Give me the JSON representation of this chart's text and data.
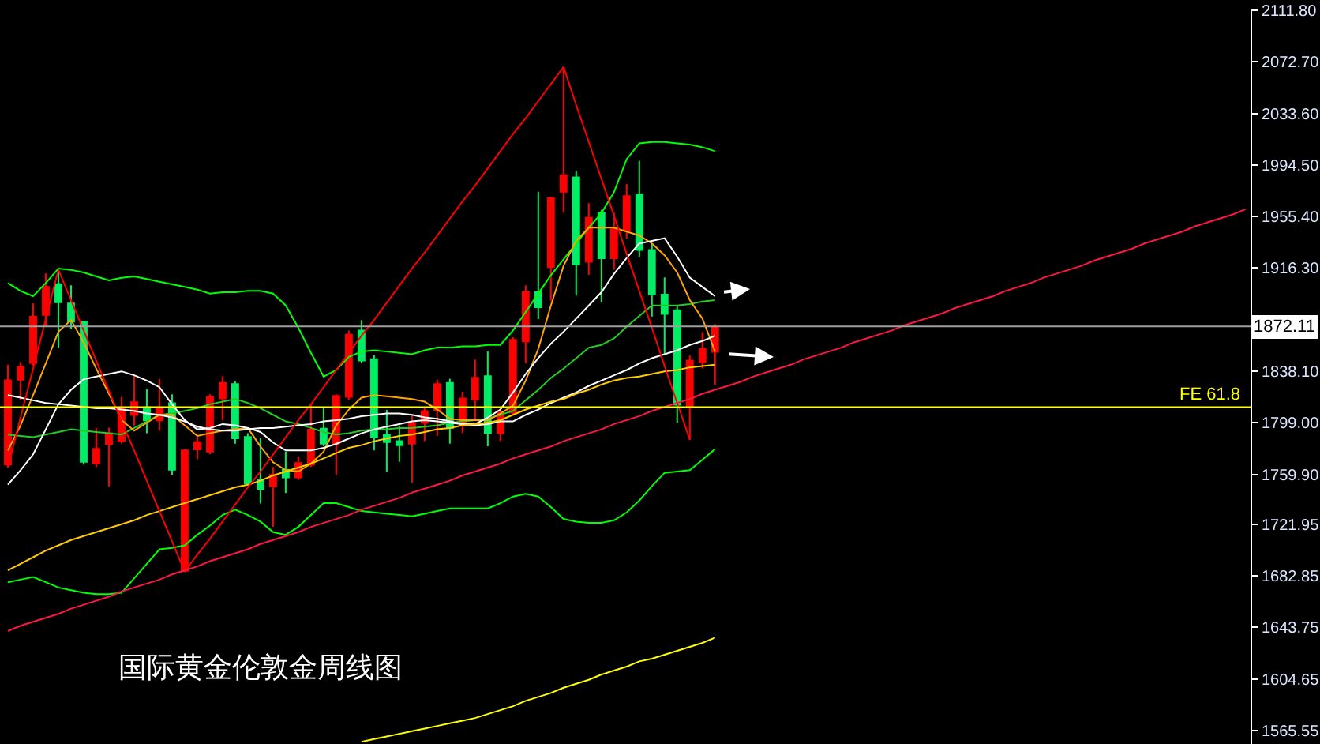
{
  "chart_data": {
    "type": "candlestick",
    "title": "国际黄金伦敦金周线图",
    "categories": [
      null,
      null,
      null,
      null,
      null,
      null,
      null,
      null,
      null,
      null,
      null,
      null,
      null,
      null,
      null,
      null,
      null,
      null,
      null,
      null,
      null,
      null,
      null,
      null,
      null,
      null,
      null,
      null,
      null,
      null,
      null,
      null,
      null,
      null,
      null,
      null,
      null,
      null,
      null,
      null,
      null,
      null,
      null,
      null,
      null,
      null,
      null,
      null,
      null,
      null,
      null,
      null,
      null,
      null,
      null,
      null,
      null,
      null,
      null,
      null,
      null,
      null,
      null,
      null,
      null,
      null,
      null,
      null,
      null,
      null,
      null,
      null,
      null,
      null,
      null,
      null,
      null,
      null,
      null,
      null,
      null,
      null,
      null,
      null,
      null,
      null,
      null,
      null,
      null,
      null,
      null,
      null,
      null,
      null,
      null,
      null,
      null,
      null,
      null
    ],
    "ohlc": [
      [
        1767.3,
        1843.0,
        1765.4,
        1831.2
      ],
      [
        1831.6,
        1845.0,
        1816.6,
        1841.4
      ],
      [
        1844.2,
        1889.5,
        1842.2,
        1879.6
      ],
      [
        1880.8,
        1912.3,
        1871.8,
        1902.1
      ],
      [
        1904.1,
        1915.1,
        1856.0,
        1890.3
      ],
      [
        1889.5,
        1903.3,
        1869.8,
        1875.7
      ],
      [
        1875.7,
        1875.7,
        1767.3,
        1769.3
      ],
      [
        1768.1,
        1794.9,
        1765.4,
        1779.2
      ],
      [
        1782.7,
        1795.3,
        1750.8,
        1791.0
      ],
      [
        1785.1,
        1818.6,
        1783.1,
        1810.7
      ],
      [
        1804.8,
        1834.3,
        1796.9,
        1814.6
      ],
      [
        1810.7,
        1824.5,
        1791.0,
        1800.8
      ],
      [
        1800.8,
        1832.4,
        1792.9,
        1810.7
      ],
      [
        1813.8,
        1820.5,
        1759.5,
        1763.4
      ],
      [
        1686.6,
        1779.0,
        1685.8,
        1778.0
      ],
      [
        1778.8,
        1789.0,
        1771.3,
        1784.3
      ],
      [
        1777.2,
        1820.5,
        1775.2,
        1818.6
      ],
      [
        1817.4,
        1834.3,
        1800.8,
        1829.2
      ],
      [
        1828.4,
        1830.4,
        1783.1,
        1787.1
      ],
      [
        1788.2,
        1791.0,
        1752.0,
        1752.8
      ],
      [
        1755.5,
        1787.1,
        1737.8,
        1748.8
      ],
      [
        1750.8,
        1765.4,
        1720.1,
        1759.5
      ],
      [
        1763.4,
        1777.2,
        1745.7,
        1757.5
      ],
      [
        1757.5,
        1773.3,
        1755.5,
        1768.5
      ],
      [
        1767.3,
        1812.7,
        1765.4,
        1793.7
      ],
      [
        1794.5,
        1810.7,
        1781.1,
        1783.1
      ],
      [
        1783.1,
        1820.5,
        1759.5,
        1819.4
      ],
      [
        1818.6,
        1869.0,
        1816.6,
        1865.8
      ],
      [
        1869.0,
        1876.9,
        1844.2,
        1846.2
      ],
      [
        1847.3,
        1850.1,
        1778.0,
        1788.2
      ],
      [
        1789.8,
        1808.7,
        1761.4,
        1784.3
      ],
      [
        1785.1,
        1796.9,
        1769.3,
        1781.9
      ],
      [
        1783.1,
        1804.8,
        1753.6,
        1798.9
      ],
      [
        1798.9,
        1810.7,
        1785.1,
        1807.9
      ],
      [
        1808.7,
        1831.6,
        1789.0,
        1828.4
      ],
      [
        1829.2,
        1832.4,
        1783.1,
        1794.9
      ],
      [
        1796.9,
        1822.5,
        1791.0,
        1817.4
      ],
      [
        1816.6,
        1846.9,
        1800.8,
        1833.1
      ],
      [
        1834.3,
        1853.2,
        1781.1,
        1791.0
      ],
      [
        1791.0,
        1810.7,
        1785.1,
        1806.8
      ],
      [
        1806.8,
        1863.9,
        1804.8,
        1861.9
      ],
      [
        1860.7,
        1903.3,
        1844.2,
        1898.2
      ],
      [
        1898.2,
        1974.2,
        1877.7,
        1886.7
      ],
      [
        1917.1,
        1970.3,
        1891.5,
        1969.5
      ],
      [
        1974.2,
        2068.7,
        1958.4,
        1986.8
      ],
      [
        1985.2,
        1989.9,
        1895.4,
        1919.0
      ],
      [
        1921.0,
        1965.5,
        1911.2,
        1954.5
      ],
      [
        1958.4,
        1960.4,
        1890.7,
        1923.8
      ],
      [
        1923.8,
        1958.4,
        1915.1,
        1945.8
      ],
      [
        1944.6,
        1980.1,
        1938.7,
        1971.0
      ],
      [
        1972.2,
        1997.8,
        1925.0,
        1930.1
      ],
      [
        1930.1,
        1934.8,
        1879.6,
        1896.2
      ],
      [
        1896.2,
        1909.2,
        1850.1,
        1881.6
      ],
      [
        1884.4,
        1887.5,
        1798.9,
        1812.7
      ],
      [
        1810.7,
        1850.1,
        1785.9,
        1846.2
      ],
      [
        1845.0,
        1867.8,
        1840.2,
        1854.8
      ],
      [
        1852.8,
        1873.7,
        1827.6,
        1871.8
      ],
      null,
      null,
      null,
      null,
      null,
      null,
      null,
      null,
      null,
      null,
      null,
      null,
      null,
      null,
      null,
      null,
      null,
      null,
      null,
      null,
      null,
      null,
      null,
      null,
      null,
      null,
      null,
      null,
      null,
      null,
      null,
      null,
      null,
      null,
      null,
      null,
      null,
      null,
      null,
      null,
      null,
      null
    ],
    "colors": [
      "#ff0000",
      "#ff0000",
      "#ff0000",
      "#ff0000",
      "#00ee66",
      "#00ee66",
      "#00ee66",
      "#ff0000",
      "#ff0000",
      "#ff0000",
      "#ff0000",
      "#00ee66",
      "#ff0000",
      "#00ee66",
      "#ff0000",
      "#ff0000",
      "#ff0000",
      "#ff0000",
      "#00ee66",
      "#00ee66",
      "#00ee66",
      "#ff0000",
      "#00ee66",
      "#ff0000",
      "#ff0000",
      "#00ee66",
      "#ff0000",
      "#ff0000",
      "#00ee66",
      "#00ee66",
      "#00ee66",
      "#00ee66",
      "#ff0000",
      "#ff0000",
      "#ff0000",
      "#00ee66",
      "#ff0000",
      "#ff0000",
      "#00ee66",
      "#ff0000",
      "#ff0000",
      "#ff0000",
      "#00ee66",
      "#ff0000",
      "#ff0000",
      "#00ee66",
      "#ff0000",
      "#00ee66",
      "#ff0000",
      "#ff0000",
      "#00ee66",
      "#00ee66",
      "#00ee66",
      "#00ee66",
      "#ff0000",
      "#ff0000",
      "#ff0000",
      null,
      null,
      null,
      null,
      null,
      null,
      null,
      null,
      null,
      null,
      null,
      null,
      null,
      null,
      null,
      null,
      null,
      null,
      null,
      null,
      null,
      null,
      null,
      null,
      null,
      null,
      null,
      null,
      null,
      null,
      null,
      null,
      null,
      null,
      null,
      null,
      null,
      null,
      null,
      null,
      null,
      null
    ],
    "series": [
      {
        "type": "line",
        "color": "#00ff00",
        "values": [
          1905,
          1899,
          1895,
          1905,
          1916,
          1915,
          1913,
          1910,
          1907,
          1909,
          1910,
          1908,
          1906,
          1904,
          1902,
          1900,
          1897,
          1898,
          1898,
          1899,
          1899,
          1897,
          1888,
          1871,
          1852,
          1834,
          1839,
          1849,
          1853,
          1854,
          1853,
          1852,
          1851,
          1854,
          1856,
          1856,
          1857,
          1857,
          1858,
          1858,
          1869,
          1883,
          1897,
          1911,
          1923,
          1935,
          1947,
          1958,
          1974,
          1999,
          2011,
          2012,
          2012,
          2011,
          2010,
          2008,
          2005,
          null,
          null,
          null,
          null,
          null,
          null,
          null,
          null,
          null,
          null,
          null,
          null,
          null,
          null,
          null,
          null,
          null,
          null,
          null,
          null,
          null,
          null,
          null,
          null,
          null,
          null,
          null,
          null,
          null,
          null,
          null,
          null,
          null,
          null,
          null,
          null,
          null,
          null,
          null,
          null,
          null,
          null
        ]
      },
      {
        "type": "line",
        "color": "#00ff00",
        "values": [
          1678,
          1680,
          1682,
          1678,
          1674,
          1672,
          1670,
          1669,
          1669,
          1670,
          1681,
          1692,
          1703,
          1704,
          1706,
          1714,
          1721,
          1729,
          1733,
          1729,
          1724,
          1716,
          1714,
          1720,
          1729,
          1738,
          1738,
          1735,
          1732,
          1731,
          1730,
          1729,
          1728,
          1730,
          1732,
          1734,
          1734,
          1734,
          1734,
          1738,
          1743,
          1745,
          1743,
          1735,
          1726,
          1724,
          1723,
          1723,
          1725,
          1731,
          1740,
          1751,
          1761,
          1762,
          1763,
          1771,
          1779,
          null,
          null,
          null,
          null,
          null,
          null,
          null,
          null,
          null,
          null,
          null,
          null,
          null,
          null,
          null,
          null,
          null,
          null,
          null,
          null,
          null,
          null,
          null,
          null,
          null,
          null,
          null,
          null,
          null,
          null,
          null,
          null,
          null,
          null,
          null,
          null,
          null,
          null,
          null,
          null,
          null,
          null
        ]
      },
      {
        "type": "line",
        "color": "#22cc22",
        "values": [
          1790,
          1789,
          1788,
          1790,
          1792,
          1794,
          1793,
          1792,
          1791,
          1790,
          1795,
          1800,
          1805,
          1806,
          1808,
          1810,
          1813,
          1815,
          1817,
          1814,
          1810,
          1805,
          1800,
          1798,
          1795,
          1792,
          1790,
          1791,
          1793,
          1794,
          1794,
          1795,
          1795,
          1796,
          1797,
          1799,
          1800,
          1801,
          1802,
          1805,
          1808,
          1816,
          1824,
          1833,
          1840,
          1848,
          1856,
          1858,
          1863,
          1872,
          1880,
          1888,
          1888,
          1888,
          1889,
          1891,
          1892,
          null,
          null,
          null,
          null,
          null,
          null,
          null,
          null,
          null,
          null,
          null,
          null,
          null,
          null,
          null,
          null,
          null,
          null,
          null,
          null,
          null,
          null,
          null,
          null,
          null,
          null,
          null,
          null,
          null,
          null,
          null,
          null,
          null,
          null,
          null,
          null,
          null,
          null,
          null,
          null,
          null,
          null
        ]
      },
      {
        "type": "line",
        "color": "#ffa500",
        "values": [
          1778,
          1797,
          1820,
          1844,
          1868,
          1877,
          1860,
          1840,
          1821,
          1801,
          1793,
          1799,
          1805,
          1805,
          1797,
          1789,
          1791,
          1793,
          1794,
          1795,
          1781,
          1769,
          1763,
          1762,
          1768,
          1777,
          1797,
          1809,
          1818,
          1820,
          1819,
          1818,
          1817,
          1815,
          1809,
          1802,
          1801,
          1801,
          1801,
          1806,
          1812,
          1831,
          1855,
          1888,
          1918,
          1937,
          1947,
          1947,
          1947,
          1944,
          1941,
          1935,
          1926,
          1913,
          1892,
          1878,
          1853,
          null,
          null,
          null,
          null,
          null,
          null,
          null,
          null,
          null,
          null,
          null,
          null,
          null,
          null,
          null,
          null,
          null,
          null,
          null,
          null,
          null,
          null,
          null,
          null,
          null,
          null,
          null,
          null,
          null,
          null,
          null,
          null,
          null,
          null,
          null,
          null,
          null,
          null,
          null,
          null,
          null,
          null
        ]
      },
      {
        "type": "line",
        "color": "#ffffff",
        "values": [
          1752,
          1763,
          1775,
          1794,
          1813,
          1824,
          1832,
          1834,
          1836,
          1838,
          1835,
          1831,
          1826,
          1813,
          1801,
          1794,
          1795,
          1798,
          1797,
          1795,
          1792,
          1784,
          1778,
          1778,
          1778,
          1780,
          1783,
          1787,
          1791,
          1794,
          1796,
          1798,
          1800,
          1801,
          1800,
          1799,
          1798,
          1798,
          1803,
          1809,
          1822,
          1836,
          1848,
          1859,
          1868,
          1878,
          1888,
          1898,
          1912,
          1924,
          1935,
          1937,
          1939,
          1925,
          1909,
          1902,
          1895,
          null,
          null,
          null,
          null,
          null,
          null,
          null,
          null,
          null,
          null,
          null,
          null,
          null,
          null,
          null,
          null,
          null,
          null,
          null,
          null,
          null,
          null,
          null,
          null,
          null,
          null,
          null,
          null,
          null,
          null,
          null,
          null,
          null,
          null,
          null,
          null,
          null,
          null,
          null,
          null,
          null,
          null
        ]
      },
      {
        "type": "line",
        "color": "#ffffff",
        "values": [
          1820,
          1818,
          1816,
          1814,
          1813,
          1812,
          1811,
          1810,
          1810,
          1809,
          1808,
          1806,
          1805,
          1803,
          1800,
          1796,
          1794,
          1793,
          1793,
          1794,
          1795,
          1795,
          1796,
          1797,
          1798,
          1800,
          1801,
          1802,
          1804,
          1805,
          1806,
          1806,
          1805,
          1803,
          1802,
          1800,
          1798,
          1797,
          1798,
          1800,
          1800,
          1805,
          1809,
          1814,
          1818,
          1822,
          1827,
          1831,
          1835,
          1839,
          1844,
          1848,
          1851,
          1854,
          1858,
          1861,
          1865,
          null,
          null,
          null,
          null,
          null,
          null,
          null,
          null,
          null,
          null,
          null,
          null,
          null,
          null,
          null,
          null,
          null,
          null,
          null,
          null,
          null,
          null,
          null,
          null,
          null,
          null,
          null,
          null,
          null,
          null,
          null,
          null,
          null,
          null,
          null,
          null,
          null,
          null,
          null,
          null,
          null,
          null
        ]
      },
      {
        "type": "line",
        "color": "#ffcc00",
        "values": [
          1687,
          1692,
          1697,
          1702,
          1706,
          1710,
          1713,
          1716,
          1719,
          1722,
          1725,
          1729,
          1732,
          1735,
          1738,
          1741,
          1744,
          1747,
          1750,
          1752,
          1755,
          1759,
          1762,
          1765,
          1768,
          1772,
          1776,
          1780,
          1782,
          1785,
          1787,
          1789,
          1790,
          1792,
          1794,
          1795,
          1797,
          1798,
          1799,
          1801,
          1805,
          1809,
          1812,
          1815,
          1817,
          1821,
          1824,
          1828,
          1831,
          1833,
          1834,
          1836,
          1838,
          1839,
          1841,
          1842,
          1843,
          null,
          null,
          null,
          null,
          null,
          null,
          null,
          null,
          null,
          null,
          null,
          null,
          null,
          null,
          null,
          null,
          null,
          null,
          null,
          null,
          null,
          null,
          null,
          null,
          null,
          null,
          null,
          null,
          null,
          null,
          null,
          null,
          null,
          null,
          null,
          null,
          null,
          null,
          null,
          null,
          null,
          null
        ]
      },
      {
        "type": "line",
        "color": "#ffff00",
        "values": [
          null,
          null,
          null,
          null,
          null,
          null,
          null,
          null,
          null,
          null,
          null,
          null,
          null,
          null,
          null,
          null,
          null,
          null,
          null,
          null,
          null,
          null,
          null,
          null,
          null,
          null,
          null,
          null,
          1557,
          1559,
          1561,
          1563,
          1565,
          1567,
          1569,
          1571,
          1573,
          1575,
          1578,
          1581,
          1584,
          1588,
          1591,
          1594,
          1598,
          1601,
          1604,
          1608,
          1611,
          1614,
          1618,
          1620,
          1623,
          1626,
          1629,
          1632,
          1636,
          null,
          null,
          null,
          null,
          null,
          null,
          null,
          null,
          null,
          null,
          null,
          null,
          null,
          null,
          null,
          null,
          null,
          null,
          null,
          null,
          null,
          null,
          null,
          null,
          null,
          null,
          null,
          null,
          null,
          null,
          null,
          null,
          null,
          null,
          null,
          null,
          null,
          null,
          null,
          null,
          null,
          null
        ]
      },
      {
        "type": "line",
        "color": "#ff0000",
        "values": [
          1765,
          1803,
          1840,
          1878,
          1915,
          1892,
          1869,
          1846,
          1823,
          1800,
          1778,
          1755,
          1732,
          1709,
          1686,
          1699,
          1711,
          1724,
          1737,
          1750,
          1762,
          1775,
          1788,
          1801,
          1813,
          1826,
          1839,
          1852,
          1865,
          1877,
          1890,
          1903,
          1916,
          1928,
          1941,
          1954,
          1967,
          1979,
          1992,
          2005,
          2018,
          2030,
          2043,
          2056,
          2069,
          2040,
          2012,
          1984,
          1956,
          1927,
          1899,
          1871,
          1842,
          1814,
          1786,
          null,
          null,
          null,
          null,
          null,
          null,
          null,
          null,
          null,
          null,
          null,
          null,
          null,
          null,
          null,
          null,
          null,
          null,
          null,
          null,
          null,
          null,
          null,
          null,
          null,
          null,
          null,
          null,
          null,
          null,
          null,
          null,
          null,
          null,
          null,
          null,
          null,
          null,
          null,
          null,
          null,
          null,
          null,
          null
        ]
      },
      {
        "type": "line",
        "color": "#ff1744",
        "values": [
          1641,
          1645,
          1648,
          1651,
          1654,
          1658,
          1661,
          1664,
          1667,
          1671,
          1674,
          1677,
          1680,
          1684,
          1687,
          1690,
          1694,
          1697,
          1700,
          1703,
          1707,
          1710,
          1713,
          1716,
          1720,
          1723,
          1726,
          1729,
          1733,
          1736,
          1739,
          1742,
          1746,
          1749,
          1752,
          1755,
          1759,
          1762,
          1765,
          1768,
          1772,
          1775,
          1778,
          1781,
          1785,
          1788,
          1791,
          1794,
          1798,
          1801,
          1804,
          1808,
          1811,
          1814,
          1817,
          1821,
          1824,
          1827,
          1830,
          1834,
          1837,
          1840,
          1843,
          1847,
          1850,
          1853,
          1856,
          1860,
          1863,
          1866,
          1869,
          1873,
          1876,
          1879,
          1882,
          1886,
          1889,
          1892,
          1895,
          1899,
          1902,
          1905,
          1909,
          1912,
          1915,
          1918,
          1922,
          1925,
          1928,
          1931,
          1935,
          1938,
          1941,
          1944,
          1948,
          1951,
          1954,
          1957,
          1961
        ]
      }
    ],
    "ref_lines": [
      {
        "axis": "y",
        "value": 1872.11,
        "label": "1872.11",
        "color": "#a0a0a0"
      },
      {
        "axis": "y",
        "value": 1810.9,
        "label": "FE 61.8",
        "color": "#ffff00"
      }
    ],
    "ylim": [
      1555.3,
      2112.5
    ],
    "yticks": [
      {
        "value": 1565.55,
        "label": "1565.55"
      },
      {
        "value": 1604.65,
        "label": "1604.65"
      },
      {
        "value": 1643.75,
        "label": "1643.75"
      },
      {
        "value": 1682.85,
        "label": "1682.85"
      },
      {
        "value": 1721.95,
        "label": "1721.95"
      },
      {
        "value": 1759.9,
        "label": "1759.90"
      },
      {
        "value": 1799.0,
        "label": "1799.00"
      },
      {
        "value": 1838.1,
        "label": "1838.10"
      },
      {
        "value": 1916.3,
        "label": "1916.30"
      },
      {
        "value": 1955.4,
        "label": "1955.40"
      },
      {
        "value": 1994.5,
        "label": "1994.50"
      },
      {
        "value": 2033.6,
        "label": "2033.60"
      },
      {
        "value": 2072.7,
        "label": "2072.70"
      },
      {
        "value": 2111.8,
        "label": "2111.80"
      }
    ],
    "tick_labels": "y",
    "grid": false,
    "marker": "none",
    "line_style": "solid"
  }
}
